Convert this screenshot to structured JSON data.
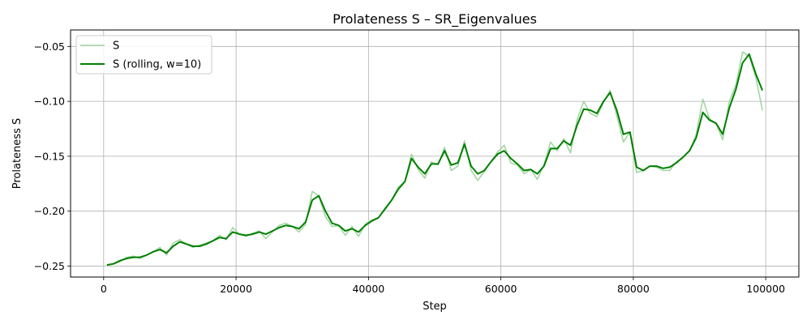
{
  "chart_data": {
    "type": "line",
    "title": "Prolateness S – SR_Eigenvalues",
    "xlabel": "Step",
    "ylabel": "Prolateness S",
    "xlim": [
      -5000,
      105000
    ],
    "ylim": [
      -0.26,
      -0.035
    ],
    "xticks": [
      0,
      20000,
      40000,
      60000,
      80000,
      100000
    ],
    "xtick_labels": [
      "0",
      "20000",
      "40000",
      "60000",
      "80000",
      "100000"
    ],
    "yticks": [
      -0.25,
      -0.2,
      -0.15,
      -0.1,
      -0.05
    ],
    "ytick_labels": [
      "−0.25",
      "−0.20",
      "−0.15",
      "−0.10",
      "−0.05"
    ],
    "grid": true,
    "legend_position": "upper-left",
    "series": [
      {
        "name": "S",
        "color": "#9fd49f",
        "x": [
          500,
          1500,
          2500,
          3500,
          4500,
          5500,
          6500,
          7500,
          8500,
          9500,
          10500,
          11500,
          12500,
          13500,
          14500,
          15500,
          16500,
          17500,
          18500,
          19500,
          20500,
          21500,
          22500,
          23500,
          24500,
          25500,
          26500,
          27500,
          28500,
          29500,
          30500,
          31500,
          32500,
          33500,
          34500,
          35500,
          36500,
          37500,
          38500,
          39500,
          40500,
          41500,
          42500,
          43500,
          44500,
          45500,
          46500,
          47500,
          48500,
          49500,
          50500,
          51500,
          52500,
          53500,
          54500,
          55500,
          56500,
          57500,
          58500,
          59500,
          60500,
          61500,
          62500,
          63500,
          64500,
          65500,
          66500,
          67500,
          68500,
          69500,
          70500,
          71500,
          72500,
          73500,
          74500,
          75500,
          76500,
          77500,
          78500,
          79500,
          80500,
          81500,
          82500,
          83500,
          84500,
          85500,
          86500,
          87500,
          88500,
          89500,
          90500,
          91500,
          92500,
          93500,
          94500,
          95500,
          96500,
          97500,
          98500,
          99500
        ],
        "y": [
          -0.249,
          -0.248,
          -0.246,
          -0.242,
          -0.241,
          -0.243,
          -0.24,
          -0.237,
          -0.233,
          -0.24,
          -0.229,
          -0.226,
          -0.23,
          -0.233,
          -0.231,
          -0.229,
          -0.227,
          -0.222,
          -0.226,
          -0.215,
          -0.221,
          -0.223,
          -0.22,
          -0.218,
          -0.225,
          -0.219,
          -0.213,
          -0.211,
          -0.214,
          -0.219,
          -0.212,
          -0.182,
          -0.186,
          -0.205,
          -0.214,
          -0.213,
          -0.222,
          -0.214,
          -0.223,
          -0.212,
          -0.208,
          -0.206,
          -0.197,
          -0.19,
          -0.178,
          -0.173,
          -0.148,
          -0.162,
          -0.17,
          -0.155,
          -0.158,
          -0.142,
          -0.163,
          -0.159,
          -0.136,
          -0.163,
          -0.172,
          -0.164,
          -0.155,
          -0.146,
          -0.14,
          -0.156,
          -0.158,
          -0.166,
          -0.162,
          -0.171,
          -0.158,
          -0.137,
          -0.145,
          -0.134,
          -0.147,
          -0.117,
          -0.1,
          -0.111,
          -0.114,
          -0.101,
          -0.09,
          -0.113,
          -0.137,
          -0.128,
          -0.165,
          -0.163,
          -0.159,
          -0.16,
          -0.163,
          -0.163,
          -0.155,
          -0.151,
          -0.145,
          -0.13,
          -0.098,
          -0.116,
          -0.12,
          -0.135,
          -0.1,
          -0.085,
          -0.055,
          -0.059,
          -0.078,
          -0.108
        ]
      },
      {
        "name": "S (rolling, w=10)",
        "color": "#008000",
        "x": [
          500,
          1500,
          2500,
          3500,
          4500,
          5500,
          6500,
          7500,
          8500,
          9500,
          10500,
          11500,
          12500,
          13500,
          14500,
          15500,
          16500,
          17500,
          18500,
          19500,
          20500,
          21500,
          22500,
          23500,
          24500,
          25500,
          26500,
          27500,
          28500,
          29500,
          30500,
          31500,
          32500,
          33500,
          34500,
          35500,
          36500,
          37500,
          38500,
          39500,
          40500,
          41500,
          42500,
          43500,
          44500,
          45500,
          46500,
          47500,
          48500,
          49500,
          50500,
          51500,
          52500,
          53500,
          54500,
          55500,
          56500,
          57500,
          58500,
          59500,
          60500,
          61500,
          62500,
          63500,
          64500,
          65500,
          66500,
          67500,
          68500,
          69500,
          70500,
          71500,
          72500,
          73500,
          74500,
          75500,
          76500,
          77500,
          78500,
          79500,
          80500,
          81500,
          82500,
          83500,
          84500,
          85500,
          86500,
          87500,
          88500,
          89500,
          90500,
          91500,
          92500,
          93500,
          94500,
          95500,
          96500,
          97500,
          98500,
          99500
        ],
        "y": [
          -0.249,
          -0.248,
          -0.245,
          -0.243,
          -0.242,
          -0.242,
          -0.24,
          -0.237,
          -0.235,
          -0.238,
          -0.232,
          -0.228,
          -0.23,
          -0.232,
          -0.232,
          -0.23,
          -0.227,
          -0.224,
          -0.225,
          -0.219,
          -0.221,
          -0.222,
          -0.221,
          -0.219,
          -0.221,
          -0.218,
          -0.215,
          -0.213,
          -0.214,
          -0.216,
          -0.21,
          -0.19,
          -0.186,
          -0.2,
          -0.211,
          -0.213,
          -0.218,
          -0.216,
          -0.219,
          -0.213,
          -0.209,
          -0.206,
          -0.198,
          -0.19,
          -0.18,
          -0.173,
          -0.152,
          -0.16,
          -0.166,
          -0.157,
          -0.157,
          -0.145,
          -0.158,
          -0.156,
          -0.139,
          -0.159,
          -0.166,
          -0.163,
          -0.155,
          -0.148,
          -0.145,
          -0.152,
          -0.157,
          -0.163,
          -0.162,
          -0.166,
          -0.159,
          -0.143,
          -0.143,
          -0.136,
          -0.14,
          -0.122,
          -0.107,
          -0.108,
          -0.111,
          -0.1,
          -0.092,
          -0.108,
          -0.13,
          -0.128,
          -0.16,
          -0.163,
          -0.159,
          -0.159,
          -0.161,
          -0.16,
          -0.156,
          -0.151,
          -0.145,
          -0.133,
          -0.11,
          -0.117,
          -0.12,
          -0.13,
          -0.106,
          -0.089,
          -0.065,
          -0.057,
          -0.075,
          -0.09
        ]
      }
    ]
  }
}
